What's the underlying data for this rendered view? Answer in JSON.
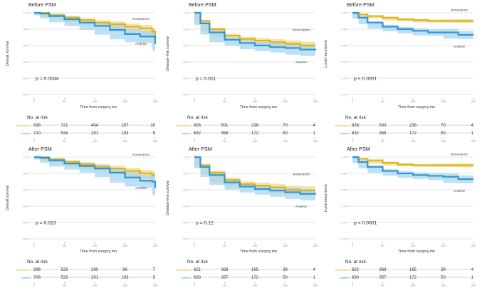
{
  "colors": {
    "nonanterior": "#E0B21A",
    "anterior": "#2E96D4",
    "nonanterior_ci": "#F0D98A",
    "anterior_ci": "#A8D6F2",
    "grid": "#DDDDDD"
  },
  "common": {
    "xlabel": "Time from surgery,mo",
    "risk_title": "No. at risk",
    "x_ticks": [
      "0",
      "50",
      "100",
      "150",
      "200"
    ],
    "y_ticks": [
      "0.0",
      "0.2",
      "0.4",
      "0.6",
      "0.8",
      "1.0"
    ]
  },
  "chart_data": [
    {
      "type": "line",
      "title": "Before PSM",
      "ylabel": "Overall survival",
      "p_value": "p = 0.0044",
      "xlim": [
        0,
        200
      ],
      "ylim": [
        0,
        1
      ],
      "x": [
        0,
        10,
        25,
        50,
        75,
        100,
        125,
        150,
        175,
        195,
        200
      ],
      "series": [
        {
          "name": "Nonanterior",
          "label": "Nonanterior",
          "values": [
            1.0,
            1.0,
            0.97,
            0.94,
            0.91,
            0.88,
            0.86,
            0.83,
            0.81,
            0.77,
            0.72
          ],
          "ci": 0.03
        },
        {
          "name": "Anterior",
          "label": "Anterior",
          "values": [
            1.0,
            0.99,
            0.96,
            0.92,
            0.88,
            0.84,
            0.79,
            0.74,
            0.71,
            0.71,
            0.62
          ],
          "ci": 0.05
        }
      ],
      "risk_table": {
        "groups": [
          "Nonanterior",
          "Anterior"
        ],
        "values": [
          [
            938,
            721,
            404,
            157,
            10
          ],
          [
            710,
            534,
            291,
            103,
            5
          ]
        ]
      }
    },
    {
      "type": "line",
      "title": "Before PSM",
      "ylabel": "Disease-free survival",
      "p_value": "p = 0.011",
      "xlim": [
        0,
        200
      ],
      "ylim": [
        0,
        1
      ],
      "x": [
        0,
        10,
        25,
        50,
        75,
        100,
        125,
        150,
        175,
        200
      ],
      "series": [
        {
          "name": "NonAnterior",
          "label": "NonAnterior",
          "values": [
            1.0,
            0.9,
            0.8,
            0.72,
            0.68,
            0.66,
            0.64,
            0.62,
            0.6,
            0.6
          ],
          "ci": 0.03
        },
        {
          "name": "Anterior",
          "label": "Anterior",
          "values": [
            1.0,
            0.87,
            0.76,
            0.67,
            0.63,
            0.6,
            0.58,
            0.57,
            0.55,
            0.54
          ],
          "ci": 0.04
        }
      ],
      "risk_table": {
        "groups": [
          "NonAnterior",
          "Anterior"
        ],
        "values": [
          [
            826,
            501,
            238,
            70,
            4
          ],
          [
            632,
            358,
            172,
            50,
            1
          ]
        ]
      }
    },
    {
      "type": "line",
      "title": "Before PSM",
      "ylabel": "Local recurrence",
      "p_value": "p < 0.0001",
      "xlim": [
        0,
        200
      ],
      "ylim": [
        0,
        1
      ],
      "x": [
        0,
        10,
        25,
        50,
        75,
        100,
        125,
        150,
        175,
        200
      ],
      "series": [
        {
          "name": "Nonanterior",
          "label": "Nonanterior",
          "values": [
            1.0,
            0.98,
            0.96,
            0.94,
            0.92,
            0.91,
            0.9,
            0.9,
            0.9,
            0.9
          ],
          "ci": 0.015
        },
        {
          "name": "Anterior",
          "label": "Anterior",
          "values": [
            1.0,
            0.94,
            0.88,
            0.83,
            0.8,
            0.78,
            0.76,
            0.76,
            0.73,
            0.73
          ],
          "ci": 0.03
        }
      ],
      "risk_table": {
        "groups": [
          "Nonanterior",
          "Anterior"
        ],
        "values": [
          [
            826,
            500,
            238,
            70,
            4
          ],
          [
            632,
            358,
            172,
            50,
            1
          ]
        ]
      }
    },
    {
      "type": "line",
      "title": "After PSM",
      "ylabel": "Overall survival",
      "p_value": "p = 0.013",
      "xlim": [
        0,
        200
      ],
      "ylim": [
        0,
        1
      ],
      "x": [
        0,
        10,
        25,
        50,
        75,
        100,
        125,
        150,
        175,
        195,
        200
      ],
      "series": [
        {
          "name": "Nonanterior",
          "label": "Nonanterior",
          "values": [
            1.0,
            1.0,
            0.97,
            0.94,
            0.91,
            0.88,
            0.86,
            0.83,
            0.8,
            0.78,
            0.78
          ],
          "ci": 0.03
        },
        {
          "name": "Anterior",
          "label": "Anterior",
          "values": [
            1.0,
            0.99,
            0.96,
            0.92,
            0.89,
            0.86,
            0.81,
            0.75,
            0.71,
            0.7,
            0.62
          ],
          "ci": 0.05
        }
      ],
      "risk_table": {
        "groups": [
          "Nonanterior",
          "Anterior"
        ],
        "values": [
          [
            696,
            529,
            280,
            96,
            7
          ],
          [
            708,
            533,
            291,
            103,
            5
          ]
        ]
      }
    },
    {
      "type": "line",
      "title": "After PSM",
      "ylabel": "Disease-free survival",
      "p_value": "p = 0.12",
      "xlim": [
        0,
        200
      ],
      "ylim": [
        0,
        1
      ],
      "x": [
        0,
        10,
        25,
        50,
        75,
        100,
        125,
        150,
        175,
        200
      ],
      "series": [
        {
          "name": "Nonanterior",
          "label": "Nonanterior",
          "values": [
            1.0,
            0.9,
            0.81,
            0.72,
            0.67,
            0.65,
            0.63,
            0.6,
            0.59,
            0.59
          ],
          "ci": 0.035
        },
        {
          "name": "Anterior",
          "label": "Anterior",
          "values": [
            1.0,
            0.88,
            0.78,
            0.69,
            0.64,
            0.61,
            0.59,
            0.57,
            0.55,
            0.54
          ],
          "ci": 0.04
        }
      ],
      "risk_table": {
        "groups": [
          "Nonanterior",
          "Anterior"
        ],
        "values": [
          [
            621,
            368,
            165,
            39,
            4
          ],
          [
            630,
            357,
            172,
            50,
            1
          ]
        ]
      }
    },
    {
      "type": "line",
      "title": "After PSM",
      "ylabel": "Local recurrence",
      "p_value": "p < 0.0001",
      "xlim": [
        0,
        200
      ],
      "ylim": [
        0,
        1
      ],
      "x": [
        0,
        10,
        25,
        50,
        75,
        100,
        125,
        150,
        175,
        200
      ],
      "series": [
        {
          "name": "Nonanterior",
          "label": "Nonanterior",
          "values": [
            1.0,
            0.98,
            0.96,
            0.93,
            0.91,
            0.9,
            0.9,
            0.9,
            0.9,
            0.9
          ],
          "ci": 0.015
        },
        {
          "name": "Anterior",
          "label": "Anterior",
          "values": [
            1.0,
            0.94,
            0.88,
            0.83,
            0.8,
            0.78,
            0.77,
            0.76,
            0.73,
            0.73
          ],
          "ci": 0.03
        }
      ],
      "risk_table": {
        "groups": [
          "Nonanterior",
          "Anterior"
        ],
        "values": [
          [
            622,
            368,
            165,
            39,
            4
          ],
          [
            630,
            357,
            172,
            50,
            1
          ]
        ]
      }
    }
  ]
}
